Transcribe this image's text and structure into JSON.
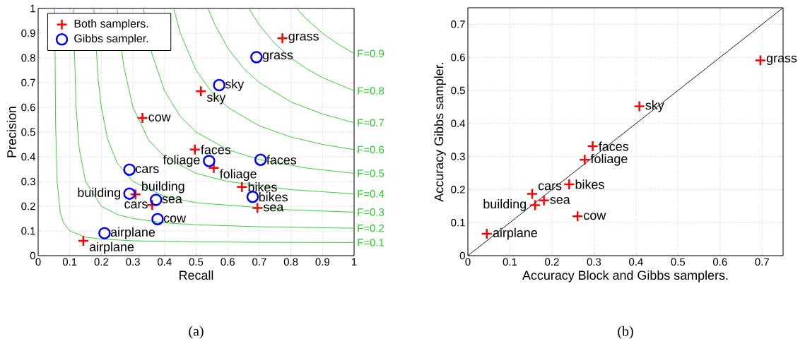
{
  "chart_data": [
    {
      "type": "scatter",
      "xlabel": "Recall",
      "ylabel": "Precision",
      "xlim": [
        0,
        1
      ],
      "ylim": [
        0,
        1
      ],
      "xticks": [
        0,
        0.1,
        0.2,
        0.3,
        0.4,
        0.5,
        0.6,
        0.7,
        0.8,
        0.9,
        1
      ],
      "yticks": [
        0,
        0.1,
        0.2,
        0.3,
        0.4,
        0.5,
        0.6,
        0.7,
        0.8,
        0.9,
        1
      ],
      "grid": true,
      "legend": "top left",
      "series": [
        {
          "name": "Both samplers.",
          "color": "#ff0000",
          "marker": "cross",
          "x": [
            0.143,
            0.308,
            0.361,
            0.33,
            0.496,
            0.556,
            0.645,
            0.694,
            0.515,
            0.773
          ],
          "values": [
            0.06,
            0.248,
            0.205,
            0.557,
            0.429,
            0.355,
            0.278,
            0.193,
            0.665,
            0.879
          ]
        },
        {
          "name": "Gibbs sampler.",
          "color": "#0000ff",
          "marker": "circle",
          "x": [
            0.21,
            0.289,
            0.289,
            0.373,
            0.378,
            0.679,
            0.541,
            0.704,
            0.573,
            0.691
          ],
          "values": [
            0.091,
            0.348,
            0.251,
            0.226,
            0.148,
            0.238,
            0.383,
            0.388,
            0.69,
            0.803
          ]
        },
        {
          "name": "F=0.1",
          "type": "line",
          "color": "#22cc22",
          "x": [
            0.0526,
            0.055,
            0.06,
            0.07,
            0.08,
            0.1,
            0.15,
            0.2,
            0.3,
            0.5,
            0.7,
            1
          ],
          "values": [
            1,
            0.55,
            0.3,
            0.175,
            0.133,
            0.1,
            0.075,
            0.067,
            0.06,
            0.056,
            0.054,
            0.053
          ]
        },
        {
          "name": "F=0.2",
          "type": "line",
          "color": "#22cc22",
          "x": [
            0.111,
            0.12,
            0.13,
            0.15,
            0.2,
            0.25,
            0.3,
            0.4,
            0.5,
            0.7,
            1
          ],
          "values": [
            1,
            0.6,
            0.433,
            0.3,
            0.2,
            0.167,
            0.15,
            0.133,
            0.125,
            0.117,
            0.111
          ]
        },
        {
          "name": "F=0.3",
          "type": "line",
          "color": "#22cc22",
          "x": [
            0.176,
            0.19,
            0.2,
            0.22,
            0.25,
            0.3,
            0.4,
            0.5,
            0.8,
            1
          ],
          "values": [
            1,
            0.713,
            0.6,
            0.471,
            0.375,
            0.3,
            0.24,
            0.214,
            0.185,
            0.176
          ]
        },
        {
          "name": "F=0.4",
          "type": "line",
          "color": "#22cc22",
          "x": [
            0.25,
            0.27,
            0.3,
            0.35,
            0.4,
            0.5,
            0.6,
            0.8,
            1
          ],
          "values": [
            1,
            0.771,
            0.6,
            0.467,
            0.4,
            0.333,
            0.3,
            0.267,
            0.25
          ]
        },
        {
          "name": "F=0.5",
          "type": "line",
          "color": "#22cc22",
          "x": [
            0.333,
            0.36,
            0.4,
            0.45,
            0.5,
            0.6,
            0.7,
            0.85,
            1
          ],
          "values": [
            1,
            0.818,
            0.667,
            0.563,
            0.5,
            0.429,
            0.389,
            0.354,
            0.333
          ]
        },
        {
          "name": "F=0.6",
          "type": "line",
          "color": "#22cc22",
          "x": [
            0.429,
            0.45,
            0.5,
            0.55,
            0.6,
            0.7,
            0.8,
            0.9,
            1
          ],
          "values": [
            1,
            0.9,
            0.75,
            0.66,
            0.6,
            0.525,
            0.48,
            0.45,
            0.429
          ]
        },
        {
          "name": "F=0.7",
          "type": "line",
          "color": "#22cc22",
          "x": [
            0.538,
            0.56,
            0.6,
            0.65,
            0.7,
            0.8,
            0.9,
            1
          ],
          "values": [
            1,
            0.933,
            0.84,
            0.758,
            0.7,
            0.622,
            0.573,
            0.538
          ]
        },
        {
          "name": "F=0.8",
          "type": "line",
          "color": "#22cc22",
          "x": [
            0.667,
            0.7,
            0.75,
            0.8,
            0.85,
            0.9,
            1
          ],
          "values": [
            1,
            0.933,
            0.857,
            0.8,
            0.756,
            0.72,
            0.667
          ]
        },
        {
          "name": "F=0.9",
          "type": "line",
          "color": "#22cc22",
          "x": [
            0.818,
            0.85,
            0.9,
            0.95,
            1
          ],
          "values": [
            1,
            0.956,
            0.9,
            0.855,
            0.818
          ]
        }
      ],
      "annotations": [
        {
          "text": "airplane",
          "x": 0.143,
          "y": 0.06
        },
        {
          "text": "building",
          "x": 0.308,
          "y": 0.248
        },
        {
          "text": "cars",
          "x": 0.361,
          "y": 0.205
        },
        {
          "text": "cow",
          "x": 0.33,
          "y": 0.557
        },
        {
          "text": "faces",
          "x": 0.496,
          "y": 0.429
        },
        {
          "text": "foliage",
          "x": 0.556,
          "y": 0.355
        },
        {
          "text": "bikes",
          "x": 0.645,
          "y": 0.278
        },
        {
          "text": "sea",
          "x": 0.694,
          "y": 0.193
        },
        {
          "text": "sky",
          "x": 0.515,
          "y": 0.665
        },
        {
          "text": "grass",
          "x": 0.773,
          "y": 0.879
        },
        {
          "text": "airplane",
          "x": 0.21,
          "y": 0.091
        },
        {
          "text": "cars",
          "x": 0.289,
          "y": 0.348
        },
        {
          "text": "building",
          "x": 0.289,
          "y": 0.251
        },
        {
          "text": "sea",
          "x": 0.373,
          "y": 0.226
        },
        {
          "text": "cow",
          "x": 0.378,
          "y": 0.148
        },
        {
          "text": "bikes",
          "x": 0.679,
          "y": 0.238
        },
        {
          "text": "foliage",
          "x": 0.541,
          "y": 0.383
        },
        {
          "text": "faces",
          "x": 0.704,
          "y": 0.388
        },
        {
          "text": "sky",
          "x": 0.573,
          "y": 0.69
        },
        {
          "text": "grass",
          "x": 0.691,
          "y": 0.803
        },
        "(a)"
      ]
    },
    {
      "type": "scatter",
      "xlabel": "Accuracy Block and Gibbs samplers.",
      "ylabel": "Accuracy Gibbs sampler.",
      "xlim": [
        0,
        0.75
      ],
      "ylim": [
        0,
        0.75
      ],
      "xticks": [
        0,
        0.1,
        0.2,
        0.3,
        0.4,
        0.5,
        0.6,
        0.7
      ],
      "yticks": [
        0,
        0.1,
        0.2,
        0.3,
        0.4,
        0.5,
        0.6,
        0.7
      ],
      "grid": true,
      "series": [
        {
          "type": "line",
          "color": "#000000",
          "x": [
            0,
            0.75
          ],
          "values": [
            0,
            0.75
          ]
        },
        {
          "color": "#ff0000",
          "marker": "cross",
          "x": [
            0.045,
            0.153,
            0.16,
            0.181,
            0.261,
            0.241,
            0.278,
            0.297,
            0.408,
            0.696
          ],
          "values": [
            0.066,
            0.187,
            0.153,
            0.167,
            0.119,
            0.216,
            0.29,
            0.331,
            0.452,
            0.591
          ]
        }
      ],
      "annotations": [
        {
          "text": "airplane",
          "x": 0.045,
          "y": 0.066
        },
        {
          "text": "cars",
          "x": 0.153,
          "y": 0.187
        },
        {
          "text": "building",
          "x": 0.16,
          "y": 0.153
        },
        {
          "text": "sea",
          "x": 0.181,
          "y": 0.167
        },
        {
          "text": "cow",
          "x": 0.261,
          "y": 0.119
        },
        {
          "text": "bikes",
          "x": 0.241,
          "y": 0.216
        },
        {
          "text": "foliage",
          "x": 0.278,
          "y": 0.29
        },
        {
          "text": "faces",
          "x": 0.297,
          "y": 0.331
        },
        {
          "text": "sky",
          "x": 0.408,
          "y": 0.452
        },
        {
          "text": "grass",
          "x": 0.696,
          "y": 0.591
        },
        "(b)"
      ]
    }
  ]
}
